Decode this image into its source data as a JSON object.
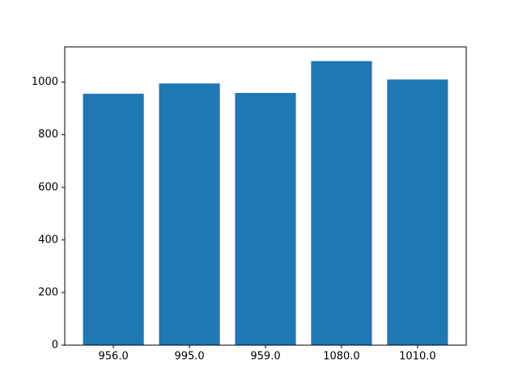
{
  "chart_data": {
    "type": "bar",
    "categories": [
      "956.0",
      "995.0",
      "959.0",
      "1080.0",
      "1010.0"
    ],
    "values": [
      956,
      995,
      959,
      1080,
      1010
    ],
    "color": "#1f77b4",
    "ylim": [
      0,
      1134
    ],
    "yticks": [
      0,
      200,
      400,
      600,
      800,
      1000
    ],
    "grid": false
  }
}
